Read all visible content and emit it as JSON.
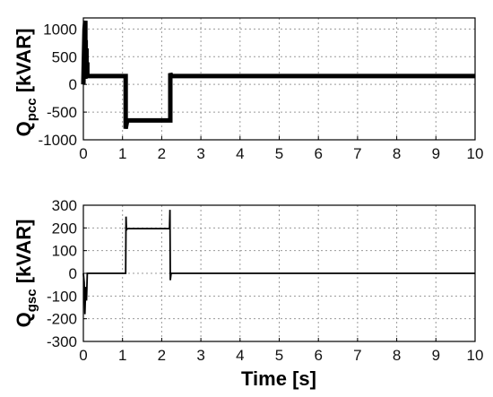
{
  "chart_data": [
    {
      "type": "line",
      "ylabel_main": "Q",
      "ylabel_sub": "pcc",
      "ylabel_unit": "[kVAR]",
      "xlabel": "",
      "xlim": [
        0,
        10
      ],
      "ylim": [
        -1000,
        1200
      ],
      "xticks": [
        0,
        1,
        2,
        3,
        4,
        5,
        6,
        7,
        8,
        9,
        10
      ],
      "yticks": [
        -1000,
        -500,
        0,
        500,
        1000
      ],
      "grid": true,
      "series": [
        {
          "color": "#000000",
          "thick": true,
          "x": [
            0,
            0.03,
            0.05,
            0.05,
            0.06,
            0.06,
            0.08,
            0.08,
            0.1,
            0.1,
            0.12,
            1.08,
            1.08,
            1.12,
            1.12,
            2.22,
            2.22,
            2.25,
            10
          ],
          "y": [
            0,
            1000,
            1150,
            100,
            800,
            150,
            650,
            150,
            400,
            150,
            150,
            150,
            -800,
            -650,
            -650,
            -650,
            200,
            150,
            150
          ]
        }
      ]
    },
    {
      "type": "line",
      "ylabel_main": "Q",
      "ylabel_sub": "gsc",
      "ylabel_unit": "[kVAR]",
      "xlabel": "Time [s]",
      "xlim": [
        0,
        10
      ],
      "ylim": [
        -300,
        300
      ],
      "xticks": [
        0,
        1,
        2,
        3,
        4,
        5,
        6,
        7,
        8,
        9,
        10
      ],
      "yticks": [
        -300,
        -200,
        -100,
        0,
        100,
        200,
        300
      ],
      "grid": true,
      "series": [
        {
          "color": "#000000",
          "thick": false,
          "x": [
            0,
            0.02,
            0.04,
            0.06,
            0.08,
            0.1,
            1.08,
            1.09,
            1.1,
            1.12,
            2.2,
            2.21,
            2.22,
            2.24,
            2.26,
            10
          ],
          "y": [
            0,
            -40,
            -180,
            -60,
            -120,
            0,
            0,
            250,
            190,
            197,
            197,
            280,
            -30,
            0,
            0,
            0
          ]
        }
      ]
    }
  ]
}
